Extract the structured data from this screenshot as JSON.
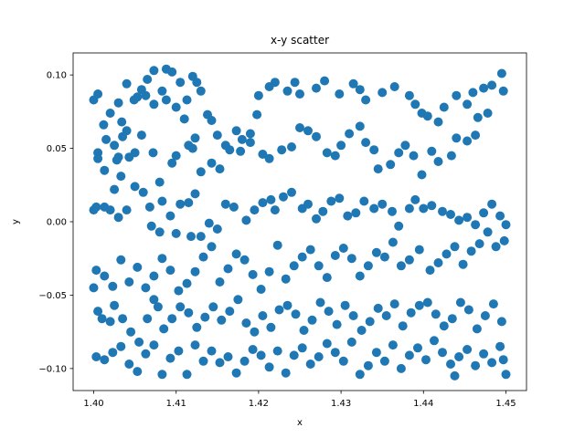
{
  "chart_data": {
    "type": "scatter",
    "title": "x-y scatter",
    "xlabel": "x",
    "ylabel": "y",
    "xlim": [
      1.3975,
      1.4525
    ],
    "ylim": [
      -0.115,
      0.115
    ],
    "xticks": [
      1.4,
      1.41,
      1.42,
      1.43,
      1.44,
      1.45
    ],
    "xtick_labels": [
      "1.40",
      "1.41",
      "1.42",
      "1.43",
      "1.44",
      "1.45"
    ],
    "yticks": [
      -0.1,
      -0.05,
      0.0,
      0.05,
      0.1
    ],
    "ytick_labels": [
      "−0.10",
      "−0.05",
      "0.00",
      "0.05",
      "0.10"
    ],
    "grid": false,
    "color": "#1f77b4",
    "points": [
      [
        1.4,
        0.083
      ],
      [
        1.4005,
        0.087
      ],
      [
        1.4012,
        0.066
      ],
      [
        1.402,
        0.074
      ],
      [
        1.403,
        0.081
      ],
      [
        1.4015,
        0.056
      ],
      [
        1.403,
        0.044
      ],
      [
        1.4034,
        0.068
      ],
      [
        1.404,
        0.062
      ],
      [
        1.4053,
        0.085
      ],
      [
        1.4058,
        0.09
      ],
      [
        1.4065,
        0.097
      ],
      [
        1.4073,
        0.103
      ],
      [
        1.4088,
        0.104
      ],
      [
        1.4095,
        0.102
      ],
      [
        1.4105,
        0.095
      ],
      [
        1.412,
        0.099
      ],
      [
        1.4125,
        0.095
      ],
      [
        1.413,
        0.089
      ],
      [
        1.4113,
        0.083
      ],
      [
        1.41,
        0.078
      ],
      [
        1.411,
        0.07
      ],
      [
        1.4088,
        0.083
      ],
      [
        1.4083,
        0.089
      ],
      [
        1.4073,
        0.08
      ],
      [
        1.4063,
        0.086
      ],
      [
        1.4049,
        0.083
      ],
      [
        1.404,
        0.094
      ],
      [
        1.4005,
        0.047
      ],
      [
        1.4005,
        0.043
      ],
      [
        1.4013,
        0.035
      ],
      [
        1.4025,
        0.022
      ],
      [
        1.4028,
        0.042
      ],
      [
        1.4033,
        0.031
      ],
      [
        1.4043,
        0.044
      ],
      [
        1.4058,
        0.059
      ],
      [
        1.405,
        0.047
      ],
      [
        1.4035,
        0.058
      ],
      [
        1.4025,
        0.052
      ],
      [
        1.4072,
        0.047
      ],
      [
        1.408,
        0.027
      ],
      [
        1.4095,
        0.04
      ],
      [
        1.41,
        0.045
      ],
      [
        1.4115,
        0.052
      ],
      [
        1.412,
        0.05
      ],
      [
        1.4123,
        0.057
      ],
      [
        1.4138,
        0.073
      ],
      [
        1.4143,
        0.069
      ],
      [
        1.415,
        0.059
      ],
      [
        1.416,
        0.052
      ],
      [
        1.4173,
        0.062
      ],
      [
        1.418,
        0.056
      ],
      [
        1.419,
        0.06
      ],
      [
        1.4198,
        0.073
      ],
      [
        1.42,
        0.086
      ],
      [
        1.4213,
        0.092
      ],
      [
        1.422,
        0.095
      ],
      [
        1.4235,
        0.089
      ],
      [
        1.4244,
        0.095
      ],
      [
        1.425,
        0.087
      ],
      [
        1.427,
        0.091
      ],
      [
        1.428,
        0.096
      ],
      [
        1.4298,
        0.087
      ],
      [
        1.4315,
        0.094
      ],
      [
        1.4323,
        0.09
      ],
      [
        1.433,
        0.083
      ],
      [
        1.435,
        0.088
      ],
      [
        1.4365,
        0.092
      ],
      [
        1.4383,
        0.086
      ],
      [
        1.439,
        0.08
      ],
      [
        1.4398,
        0.074
      ],
      [
        1.4405,
        0.072
      ],
      [
        1.4418,
        0.068
      ],
      [
        1.4425,
        0.078
      ],
      [
        1.444,
        0.086
      ],
      [
        1.4453,
        0.08
      ],
      [
        1.446,
        0.088
      ],
      [
        1.4473,
        0.091
      ],
      [
        1.4483,
        0.093
      ],
      [
        1.4495,
        0.101
      ],
      [
        1.4497,
        0.089
      ],
      [
        1.4478,
        0.074
      ],
      [
        1.4466,
        0.071
      ],
      [
        1.4463,
        0.059
      ],
      [
        1.4453,
        0.055
      ],
      [
        1.444,
        0.057
      ],
      [
        1.4434,
        0.045
      ],
      [
        1.4418,
        0.041
      ],
      [
        1.441,
        0.048
      ],
      [
        1.4398,
        0.032
      ],
      [
        1.4388,
        0.045
      ],
      [
        1.4378,
        0.052
      ],
      [
        1.437,
        0.047
      ],
      [
        1.436,
        0.039
      ],
      [
        1.4345,
        0.036
      ],
      [
        1.434,
        0.049
      ],
      [
        1.433,
        0.054
      ],
      [
        1.4323,
        0.065
      ],
      [
        1.431,
        0.06
      ],
      [
        1.43,
        0.052
      ],
      [
        1.4293,
        0.045
      ],
      [
        1.4283,
        0.047
      ],
      [
        1.427,
        0.058
      ],
      [
        1.426,
        0.062
      ],
      [
        1.425,
        0.064
      ],
      [
        1.424,
        0.051
      ],
      [
        1.4228,
        0.049
      ],
      [
        1.4213,
        0.043
      ],
      [
        1.4205,
        0.046
      ],
      [
        1.419,
        0.054
      ],
      [
        1.4178,
        0.048
      ],
      [
        1.4165,
        0.049
      ],
      [
        1.4153,
        0.036
      ],
      [
        1.4143,
        0.04
      ],
      [
        1.413,
        0.034
      ],
      [
        1.4123,
        0.019
      ],
      [
        1.4115,
        0.013
      ],
      [
        1.4105,
        0.012
      ],
      [
        1.4093,
        0.004
      ],
      [
        1.4083,
        0.014
      ],
      [
        1.4068,
        0.01
      ],
      [
        1.406,
        0.02
      ],
      [
        1.405,
        0.024
      ],
      [
        1.404,
        0.008
      ],
      [
        1.403,
        0.003
      ],
      [
        1.402,
        0.008
      ],
      [
        1.4013,
        0.01
      ],
      [
        1.4003,
        0.01
      ],
      [
        1.4,
        0.008
      ],
      [
        1.407,
        -0.003
      ],
      [
        1.408,
        -0.007
      ],
      [
        1.41,
        -0.008
      ],
      [
        1.4118,
        -0.01
      ],
      [
        1.413,
        -0.01
      ],
      [
        1.414,
        -0.001
      ],
      [
        1.415,
        -0.005
      ],
      [
        1.416,
        0.012
      ],
      [
        1.417,
        0.01
      ],
      [
        1.4185,
        0.001
      ],
      [
        1.4195,
        0.008
      ],
      [
        1.4205,
        0.013
      ],
      [
        1.4215,
        0.015
      ],
      [
        1.422,
        0.008
      ],
      [
        1.423,
        0.017
      ],
      [
        1.424,
        0.02
      ],
      [
        1.4253,
        0.009
      ],
      [
        1.426,
        0.012
      ],
      [
        1.427,
        0.002
      ],
      [
        1.4278,
        0.007
      ],
      [
        1.4288,
        0.014
      ],
      [
        1.4298,
        0.016
      ],
      [
        1.4308,
        0.004
      ],
      [
        1.4318,
        0.006
      ],
      [
        1.4328,
        0.014
      ],
      [
        1.434,
        0.009
      ],
      [
        1.435,
        0.012
      ],
      [
        1.4362,
        0.007
      ],
      [
        1.437,
        -0.003
      ],
      [
        1.4383,
        0.009
      ],
      [
        1.439,
        0.015
      ],
      [
        1.44,
        0.009
      ],
      [
        1.441,
        0.011
      ],
      [
        1.4423,
        0.007
      ],
      [
        1.4433,
        0.005
      ],
      [
        1.4443,
        0.001
      ],
      [
        1.4453,
        0.003
      ],
      [
        1.4463,
        -0.002
      ],
      [
        1.4473,
        0.006
      ],
      [
        1.4483,
        0.012
      ],
      [
        1.4493,
        0.004
      ],
      [
        1.45,
        -0.002
      ],
      [
        1.4498,
        -0.013
      ],
      [
        1.4488,
        -0.017
      ],
      [
        1.4478,
        -0.007
      ],
      [
        1.4468,
        -0.015
      ],
      [
        1.4458,
        -0.02
      ],
      [
        1.4448,
        -0.029
      ],
      [
        1.4438,
        -0.017
      ],
      [
        1.4428,
        -0.022
      ],
      [
        1.4418,
        -0.028
      ],
      [
        1.4408,
        -0.033
      ],
      [
        1.4395,
        -0.019
      ],
      [
        1.4383,
        -0.026
      ],
      [
        1.4373,
        -0.03
      ],
      [
        1.4363,
        -0.014
      ],
      [
        1.4353,
        -0.024
      ],
      [
        1.4343,
        -0.021
      ],
      [
        1.4333,
        -0.03
      ],
      [
        1.4323,
        -0.037
      ],
      [
        1.4313,
        -0.025
      ],
      [
        1.4303,
        -0.018
      ],
      [
        1.4293,
        -0.023
      ],
      [
        1.4283,
        -0.038
      ],
      [
        1.4273,
        -0.03
      ],
      [
        1.4263,
        -0.019
      ],
      [
        1.4253,
        -0.024
      ],
      [
        1.4243,
        -0.03
      ],
      [
        1.4233,
        -0.039
      ],
      [
        1.4223,
        -0.016
      ],
      [
        1.4213,
        -0.034
      ],
      [
        1.4203,
        -0.046
      ],
      [
        1.4193,
        -0.036
      ],
      [
        1.4183,
        -0.026
      ],
      [
        1.4173,
        -0.022
      ],
      [
        1.4163,
        -0.032
      ],
      [
        1.4153,
        -0.041
      ],
      [
        1.4143,
        -0.017
      ],
      [
        1.4133,
        -0.024
      ],
      [
        1.4123,
        -0.034
      ],
      [
        1.4113,
        -0.042
      ],
      [
        1.4103,
        -0.047
      ],
      [
        1.4093,
        -0.033
      ],
      [
        1.4083,
        -0.025
      ],
      [
        1.4073,
        -0.037
      ],
      [
        1.4063,
        -0.045
      ],
      [
        1.4053,
        -0.031
      ],
      [
        1.4043,
        -0.041
      ],
      [
        1.4033,
        -0.026
      ],
      [
        1.4023,
        -0.044
      ],
      [
        1.4013,
        -0.037
      ],
      [
        1.4003,
        -0.033
      ],
      [
        1.4,
        -0.045
      ],
      [
        1.4005,
        -0.061
      ],
      [
        1.401,
        -0.066
      ],
      [
        1.402,
        -0.068
      ],
      [
        1.4025,
        -0.057
      ],
      [
        1.4035,
        -0.066
      ],
      [
        1.4045,
        -0.075
      ],
      [
        1.4055,
        -0.082
      ],
      [
        1.4065,
        -0.066
      ],
      [
        1.4073,
        -0.053
      ],
      [
        1.4078,
        -0.058
      ],
      [
        1.4085,
        -0.073
      ],
      [
        1.4095,
        -0.066
      ],
      [
        1.4105,
        -0.058
      ],
      [
        1.4115,
        -0.062
      ],
      [
        1.4125,
        -0.072
      ],
      [
        1.4135,
        -0.065
      ],
      [
        1.4145,
        -0.058
      ],
      [
        1.4155,
        -0.067
      ],
      [
        1.4165,
        -0.061
      ],
      [
        1.4175,
        -0.053
      ],
      [
        1.4185,
        -0.069
      ],
      [
        1.4195,
        -0.075
      ],
      [
        1.4205,
        -0.064
      ],
      [
        1.4215,
        -0.072
      ],
      [
        1.4225,
        -0.06
      ],
      [
        1.4235,
        -0.057
      ],
      [
        1.4245,
        -0.063
      ],
      [
        1.4255,
        -0.074
      ],
      [
        1.4265,
        -0.067
      ],
      [
        1.4275,
        -0.055
      ],
      [
        1.4285,
        -0.061
      ],
      [
        1.4295,
        -0.07
      ],
      [
        1.4305,
        -0.057
      ],
      [
        1.4315,
        -0.064
      ],
      [
        1.4325,
        -0.074
      ],
      [
        1.4335,
        -0.068
      ],
      [
        1.4345,
        -0.059
      ],
      [
        1.4355,
        -0.064
      ],
      [
        1.4365,
        -0.056
      ],
      [
        1.4375,
        -0.071
      ],
      [
        1.4385,
        -0.062
      ],
      [
        1.4395,
        -0.057
      ],
      [
        1.4405,
        -0.055
      ],
      [
        1.4415,
        -0.063
      ],
      [
        1.4425,
        -0.071
      ],
      [
        1.4435,
        -0.066
      ],
      [
        1.4445,
        -0.055
      ],
      [
        1.4455,
        -0.06
      ],
      [
        1.4465,
        -0.073
      ],
      [
        1.4475,
        -0.064
      ],
      [
        1.4485,
        -0.056
      ],
      [
        1.4495,
        -0.068
      ],
      [
        1.4003,
        -0.092
      ],
      [
        1.4013,
        -0.094
      ],
      [
        1.4023,
        -0.089
      ],
      [
        1.4033,
        -0.085
      ],
      [
        1.4043,
        -0.097
      ],
      [
        1.4053,
        -0.102
      ],
      [
        1.4063,
        -0.09
      ],
      [
        1.4073,
        -0.084
      ],
      [
        1.4083,
        -0.104
      ],
      [
        1.4093,
        -0.093
      ],
      [
        1.4103,
        -0.088
      ],
      [
        1.4113,
        -0.104
      ],
      [
        1.4123,
        -0.084
      ],
      [
        1.4133,
        -0.095
      ],
      [
        1.4143,
        -0.088
      ],
      [
        1.4153,
        -0.096
      ],
      [
        1.4163,
        -0.092
      ],
      [
        1.4173,
        -0.103
      ],
      [
        1.4183,
        -0.095
      ],
      [
        1.4193,
        -0.087
      ],
      [
        1.4203,
        -0.091
      ],
      [
        1.4213,
        -0.099
      ],
      [
        1.4223,
        -0.088
      ],
      [
        1.4233,
        -0.103
      ],
      [
        1.4243,
        -0.091
      ],
      [
        1.4253,
        -0.086
      ],
      [
        1.4263,
        -0.097
      ],
      [
        1.4273,
        -0.092
      ],
      [
        1.4283,
        -0.083
      ],
      [
        1.4293,
        -0.089
      ],
      [
        1.4303,
        -0.095
      ],
      [
        1.4313,
        -0.082
      ],
      [
        1.4323,
        -0.104
      ],
      [
        1.4333,
        -0.098
      ],
      [
        1.4343,
        -0.089
      ],
      [
        1.4353,
        -0.095
      ],
      [
        1.4363,
        -0.084
      ],
      [
        1.4373,
        -0.1
      ],
      [
        1.4383,
        -0.091
      ],
      [
        1.4393,
        -0.086
      ],
      [
        1.4403,
        -0.094
      ],
      [
        1.4413,
        -0.081
      ],
      [
        1.4423,
        -0.089
      ],
      [
        1.4433,
        -0.097
      ],
      [
        1.4443,
        -0.092
      ],
      [
        1.4453,
        -0.087
      ],
      [
        1.4463,
        -0.098
      ],
      [
        1.4473,
        -0.09
      ],
      [
        1.4483,
        -0.096
      ],
      [
        1.4493,
        -0.085
      ],
      [
        1.45,
        -0.104
      ],
      [
        1.4497,
        -0.094
      ],
      [
        1.4438,
        -0.105
      ]
    ]
  }
}
